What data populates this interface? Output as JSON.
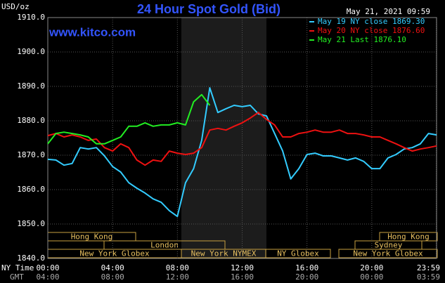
{
  "chart_data": {
    "type": "line",
    "title": "24 Hour Spot Gold (Bid)",
    "y_label": "USD/oz",
    "site": "www.kitco.com",
    "timestamp": "May 21, 2021 09:59",
    "x_label": "NY Time",
    "x2_label": "GMT",
    "x": [
      0,
      0.5,
      1,
      1.5,
      2,
      2.5,
      3,
      3.5,
      4,
      4.5,
      5,
      5.5,
      6,
      6.5,
      7,
      7.5,
      8,
      8.5,
      9,
      9.5,
      10,
      10.5,
      11,
      11.5,
      12,
      12.5,
      13,
      13.5,
      14,
      14.5,
      15,
      15.5,
      16,
      16.5,
      17,
      17.5,
      18,
      18.5,
      19,
      19.5,
      20,
      20.5,
      21,
      21.5,
      22,
      22.5,
      23,
      23.5,
      24
    ],
    "xlim": [
      0,
      24
    ],
    "xticks": [
      {
        "value": 0,
        "label": "00:00"
      },
      {
        "value": 4,
        "label": "04:00"
      },
      {
        "value": 8,
        "label": "08:00"
      },
      {
        "value": 12,
        "label": "12:00"
      },
      {
        "value": 16,
        "label": "16:00"
      },
      {
        "value": 20,
        "label": "20:00"
      },
      {
        "value": 23.983,
        "label": "23:59"
      }
    ],
    "x2ticks": [
      {
        "value": 0,
        "label": "04:00"
      },
      {
        "value": 4,
        "label": "08:00"
      },
      {
        "value": 8,
        "label": "12:00"
      },
      {
        "value": 12,
        "label": "16:00"
      },
      {
        "value": 16,
        "label": "20:00"
      },
      {
        "value": 20,
        "label": "00:00"
      },
      {
        "value": 23.983,
        "label": "03:59"
      }
    ],
    "ylim": [
      1840,
      1910
    ],
    "yticks": [
      {
        "value": 1840,
        "label": "1840.0"
      },
      {
        "value": 1850,
        "label": "1850.0"
      },
      {
        "value": 1860,
        "label": "1860.0"
      },
      {
        "value": 1870,
        "label": "1870.0"
      },
      {
        "value": 1880,
        "label": "1880.0"
      },
      {
        "value": 1890,
        "label": "1890.0"
      },
      {
        "value": 1900,
        "label": "1900.0"
      },
      {
        "value": 1910,
        "label": "1910.0"
      }
    ],
    "grid": true,
    "legend": "top-right",
    "series": [
      {
        "name": "May 19 NY close 1869.30",
        "color": "#33ccff",
        "values": [
          1868.8,
          1868.6,
          1867.1,
          1867.6,
          1872.2,
          1871.8,
          1872.2,
          1869.8,
          1866.7,
          1865.1,
          1862.0,
          1860.4,
          1859.0,
          1857.3,
          1856.3,
          1853.9,
          1852.2,
          1862.0,
          1866.1,
          1874.3,
          1889.6,
          1882.4,
          1883.5,
          1884.5,
          1884.1,
          1884.5,
          1882.0,
          1881.4,
          1876.3,
          1871.2,
          1863.1,
          1866.1,
          1870.2,
          1870.6,
          1869.8,
          1869.8,
          1869.2,
          1868.6,
          1869.2,
          1868.2,
          1866.1,
          1866.1,
          1869.2,
          1870.2,
          1871.8,
          1872.2,
          1873.3,
          1876.3,
          1875.9
        ]
      },
      {
        "name": "May 20 NY close 1876.60",
        "color": "#ee1111",
        "values": [
          1875.7,
          1876.3,
          1875.3,
          1875.9,
          1875.3,
          1874.3,
          1874.7,
          1872.2,
          1871.2,
          1873.3,
          1872.2,
          1868.6,
          1867.1,
          1868.6,
          1868.2,
          1871.2,
          1870.6,
          1870.2,
          1870.6,
          1872.2,
          1877.3,
          1877.8,
          1877.3,
          1878.4,
          1879.4,
          1880.8,
          1882.4,
          1880.4,
          1878.8,
          1875.3,
          1875.3,
          1876.3,
          1876.7,
          1877.3,
          1876.7,
          1876.7,
          1877.3,
          1876.3,
          1876.3,
          1875.9,
          1875.3,
          1875.3,
          1874.3,
          1873.3,
          1872.2,
          1871.2,
          1871.8,
          1872.2,
          1872.7
        ]
      },
      {
        "name": "May 21 Last 1876.10",
        "color": "#22ee22",
        "values": [
          1873.3,
          1876.3,
          1876.7,
          1876.3,
          1875.9,
          1875.3,
          1873.3,
          1873.3,
          1874.3,
          1875.3,
          1878.4,
          1878.4,
          1879.4,
          1878.4,
          1878.8,
          1878.8,
          1879.4,
          1878.8,
          1885.5,
          1887.6,
          1884.5,
          null,
          null,
          null,
          null,
          null,
          null,
          null,
          null,
          null,
          null,
          null,
          null,
          null,
          null,
          null,
          null,
          null,
          null,
          null,
          null,
          null,
          null,
          null,
          null,
          null,
          null,
          null,
          null
        ]
      }
    ],
    "sessions": [
      "Hong Kong",
      "London",
      "New York Globex",
      "New York NYMEX",
      "NY Globex",
      "Hong Kong",
      "Sydney",
      "New York Globex"
    ]
  }
}
